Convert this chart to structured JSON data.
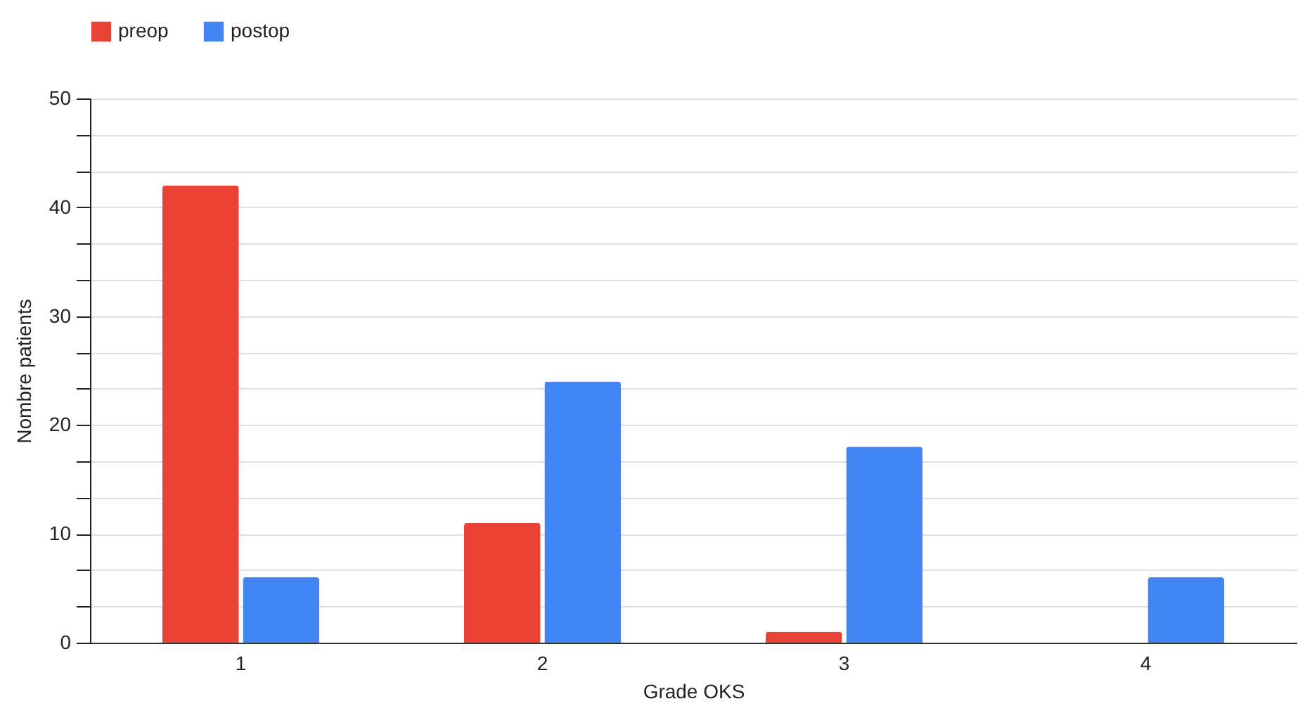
{
  "chart_data": {
    "type": "bar",
    "xlabel": "Grade OKS",
    "ylabel": "Nombre patients",
    "categories": [
      "1",
      "2",
      "3",
      "4"
    ],
    "series": [
      {
        "name": "preop",
        "color": "#ea4335",
        "values": [
          42,
          11,
          1,
          0
        ]
      },
      {
        "name": "postop",
        "color": "#4285f4",
        "values": [
          6,
          24,
          18,
          6
        ]
      }
    ],
    "ylim": [
      0,
      50
    ],
    "yticks": [
      0,
      {
        "value": 3.33,
        "label": null
      },
      {
        "value": 6.67,
        "label": null
      },
      10,
      {
        "value": 13.33,
        "label": null
      },
      {
        "value": 16.67,
        "label": null
      },
      20,
      {
        "value": 23.33,
        "label": null
      },
      {
        "value": 26.67,
        "label": null
      },
      30,
      {
        "value": 33.33,
        "label": null
      },
      {
        "value": 36.67,
        "label": null
      },
      40,
      {
        "value": 43.33,
        "label": null
      },
      {
        "value": 46.67,
        "label": null
      },
      50
    ],
    "grid": true,
    "legend": "top"
  }
}
